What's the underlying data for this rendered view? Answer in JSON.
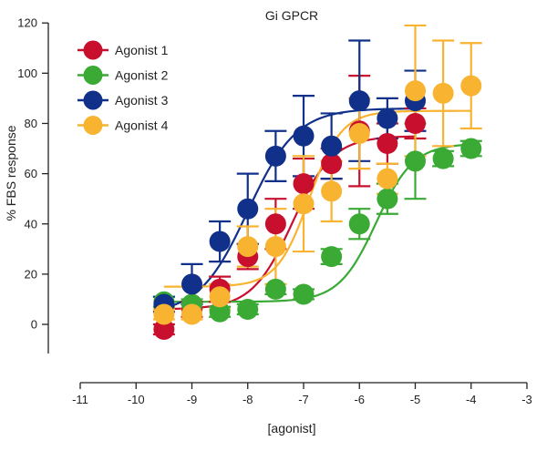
{
  "chart_data": {
    "type": "scatter",
    "title": "Gi GPCR",
    "xlabel": "[agonist]",
    "ylabel": "% FBS response",
    "xlim": [
      -11,
      -3
    ],
    "ylim": [
      -10,
      120
    ],
    "xticks": [
      -11,
      -10,
      -9,
      -8,
      -7,
      -6,
      -5,
      -4,
      -3
    ],
    "yticks": [
      0,
      20,
      40,
      60,
      80,
      100,
      120
    ],
    "xtick_labels": [
      "-11",
      "-10",
      "-9",
      "-8",
      "-7",
      "-6",
      "-5",
      "-4",
      "-3"
    ],
    "ytick_labels": [
      "0",
      "20",
      "40",
      "60",
      "80",
      "100",
      "120"
    ],
    "grid": false,
    "legend_position": "top-left",
    "series": [
      {
        "name": "Agonist 1",
        "color": "#c8102e",
        "x": [
          -9.5,
          -9,
          -8.5,
          -8,
          -7.5,
          -7,
          -6.5,
          -6,
          -5.5,
          -5
        ],
        "y": [
          -2,
          6,
          14,
          27,
          40,
          56,
          64,
          77,
          72,
          80
        ],
        "err": [
          2,
          3,
          5,
          5,
          10,
          10,
          6,
          22,
          8,
          6
        ],
        "fit": {
          "bottom": 6,
          "top": 75,
          "logEC50": -7.2,
          "hill": 1.2
        }
      },
      {
        "name": "Agonist 2",
        "color": "#3aaa35",
        "x": [
          -9.5,
          -9,
          -8.5,
          -8,
          -7.5,
          -7,
          -6.5,
          -6,
          -5.5,
          -5,
          -4.5,
          -4
        ],
        "y": [
          9,
          8,
          5,
          6,
          14,
          12,
          27,
          40,
          50,
          65,
          66,
          70
        ],
        "err": [
          2,
          2,
          2,
          2,
          2,
          2,
          3,
          6,
          6,
          15,
          3,
          3
        ],
        "fit": {
          "bottom": 9,
          "top": 72,
          "logEC50": -5.7,
          "hill": 1.3
        }
      },
      {
        "name": "Agonist 3",
        "color": "#10308a",
        "x": [
          -9.5,
          -9,
          -8.5,
          -8,
          -7.5,
          -7,
          -6.5,
          -6,
          -5.5,
          -5
        ],
        "y": [
          8,
          16,
          33,
          46,
          67,
          75,
          71,
          89,
          82,
          89
        ],
        "err": [
          3,
          8,
          8,
          14,
          10,
          16,
          13,
          24,
          8,
          12
        ],
        "fit": {
          "bottom": 4,
          "top": 86,
          "logEC50": -8.0,
          "hill": 1.0
        }
      },
      {
        "name": "Agonist 4",
        "color": "#f8b331",
        "x": [
          -9.5,
          -9,
          -8.5,
          -8,
          -7.5,
          -7,
          -6.5,
          -6,
          -5.5,
          -5,
          -4.5,
          -4
        ],
        "y": [
          4,
          4,
          11,
          31,
          31,
          48,
          53,
          76,
          58,
          93,
          92,
          95
        ],
        "err": [
          2,
          2,
          5,
          8,
          15,
          19,
          12,
          14,
          6,
          26,
          21,
          17
        ],
        "fit": {
          "bottom": 15,
          "top": 85,
          "logEC50": -6.9,
          "hill": 1.5
        }
      }
    ]
  }
}
